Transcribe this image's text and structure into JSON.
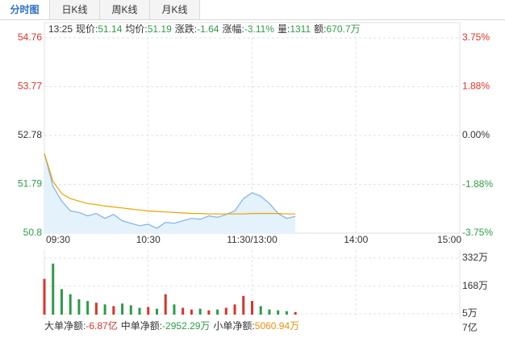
{
  "tabs": [
    "分时图",
    "日K线",
    "周K线",
    "月K线"
  ],
  "active_tab": 0,
  "info": {
    "time": "13:25",
    "items": [
      {
        "label": "现价:",
        "value": "51.14"
      },
      {
        "label": "均价:",
        "value": "51.19"
      },
      {
        "label": "涨跌:",
        "value": "-1.64"
      },
      {
        "label": "涨幅:",
        "value": "-3.11%"
      },
      {
        "label": "量:",
        "value": "1311"
      },
      {
        "label": "额:",
        "value": "670.7万"
      }
    ]
  },
  "fund_flow": [
    {
      "label": "大单净额:",
      "value": "-6.87亿",
      "color": "#d9342b"
    },
    {
      "label": "中单净额:",
      "value": "-2952.29万",
      "color": "#2e9b48"
    },
    {
      "label": "小单净额:",
      "value": "5060.94万",
      "color": "#e8900c"
    }
  ],
  "amount_tick": "7亿",
  "chart_data": [
    {
      "type": "line",
      "x": [
        "09:30",
        "09:35",
        "09:40",
        "09:45",
        "09:50",
        "09:55",
        "10:00",
        "10:05",
        "10:10",
        "10:15",
        "10:20",
        "10:25",
        "10:30",
        "10:35",
        "10:40",
        "10:45",
        "10:50",
        "10:55",
        "11:00",
        "11:05",
        "11:10",
        "11:15",
        "11:20",
        "11:25",
        "11:30",
        "13:05",
        "13:10",
        "13:15",
        "13:20",
        "13:25"
      ],
      "xticks": [
        "09:30",
        "10:30",
        "11:30/13:00",
        "14:00",
        "15:00"
      ],
      "series": [
        {
          "color": "#7fb2e5",
          "fill": "#e4f2fb",
          "values": [
            52.42,
            51.75,
            51.45,
            51.25,
            51.22,
            51.15,
            51.2,
            51.1,
            51.18,
            51.05,
            51.0,
            50.95,
            50.98,
            50.9,
            51.02,
            51.0,
            51.05,
            51.1,
            51.08,
            51.15,
            51.12,
            51.18,
            51.25,
            51.5,
            51.62,
            51.55,
            51.4,
            51.2,
            51.1,
            51.14
          ]
        },
        {
          "color": "#e8a400",
          "values": [
            52.42,
            51.85,
            51.6,
            51.5,
            51.45,
            51.4,
            51.38,
            51.35,
            51.33,
            51.31,
            51.29,
            51.27,
            51.25,
            51.24,
            51.23,
            51.22,
            51.21,
            51.2,
            51.2,
            51.19,
            51.19,
            51.19,
            51.19,
            51.19,
            51.2,
            51.2,
            51.2,
            51.2,
            51.19,
            51.19
          ]
        }
      ],
      "ylim": [
        50.8,
        54.76
      ],
      "yticks": [
        54.76,
        53.77,
        52.78,
        51.79,
        50.8
      ],
      "y2lim": [
        -3.75,
        3.75
      ],
      "y2ticks": [
        {
          "value": 3.75,
          "label": "3.75%"
        },
        {
          "value": 1.88,
          "label": "1.88%"
        },
        {
          "value": 0,
          "label": "0.00%"
        },
        {
          "value": -1.88,
          "label": "-1.88%"
        },
        {
          "value": -3.75,
          "label": "-3.75%"
        }
      ],
      "up_color": "#d9342b",
      "down_color": "#2e9b48",
      "flat_color": "#333333",
      "grid": true
    },
    {
      "type": "bar",
      "x": [
        "09:30",
        "09:35",
        "09:40",
        "09:45",
        "09:50",
        "09:55",
        "10:00",
        "10:05",
        "10:10",
        "10:15",
        "10:20",
        "10:25",
        "10:30",
        "10:35",
        "10:40",
        "10:45",
        "10:50",
        "10:55",
        "11:00",
        "11:05",
        "11:10",
        "11:15",
        "11:20",
        "11:25",
        "11:30",
        "13:05",
        "13:10",
        "13:15",
        "13:20",
        "13:25"
      ],
      "values": [
        210,
        300,
        150,
        120,
        90,
        80,
        70,
        60,
        50,
        65,
        55,
        40,
        45,
        35,
        120,
        60,
        40,
        30,
        35,
        25,
        30,
        40,
        60,
        110,
        80,
        50,
        30,
        25,
        20,
        15
      ],
      "ylim": [
        0,
        332
      ],
      "yticks": [
        {
          "value": 332,
          "label": "332万"
        },
        {
          "value": 168,
          "label": "168万"
        },
        {
          "value": 5,
          "label": "5万"
        }
      ],
      "up_color": "#d9342b",
      "down_color": "#2e9b48",
      "grid": true
    }
  ]
}
